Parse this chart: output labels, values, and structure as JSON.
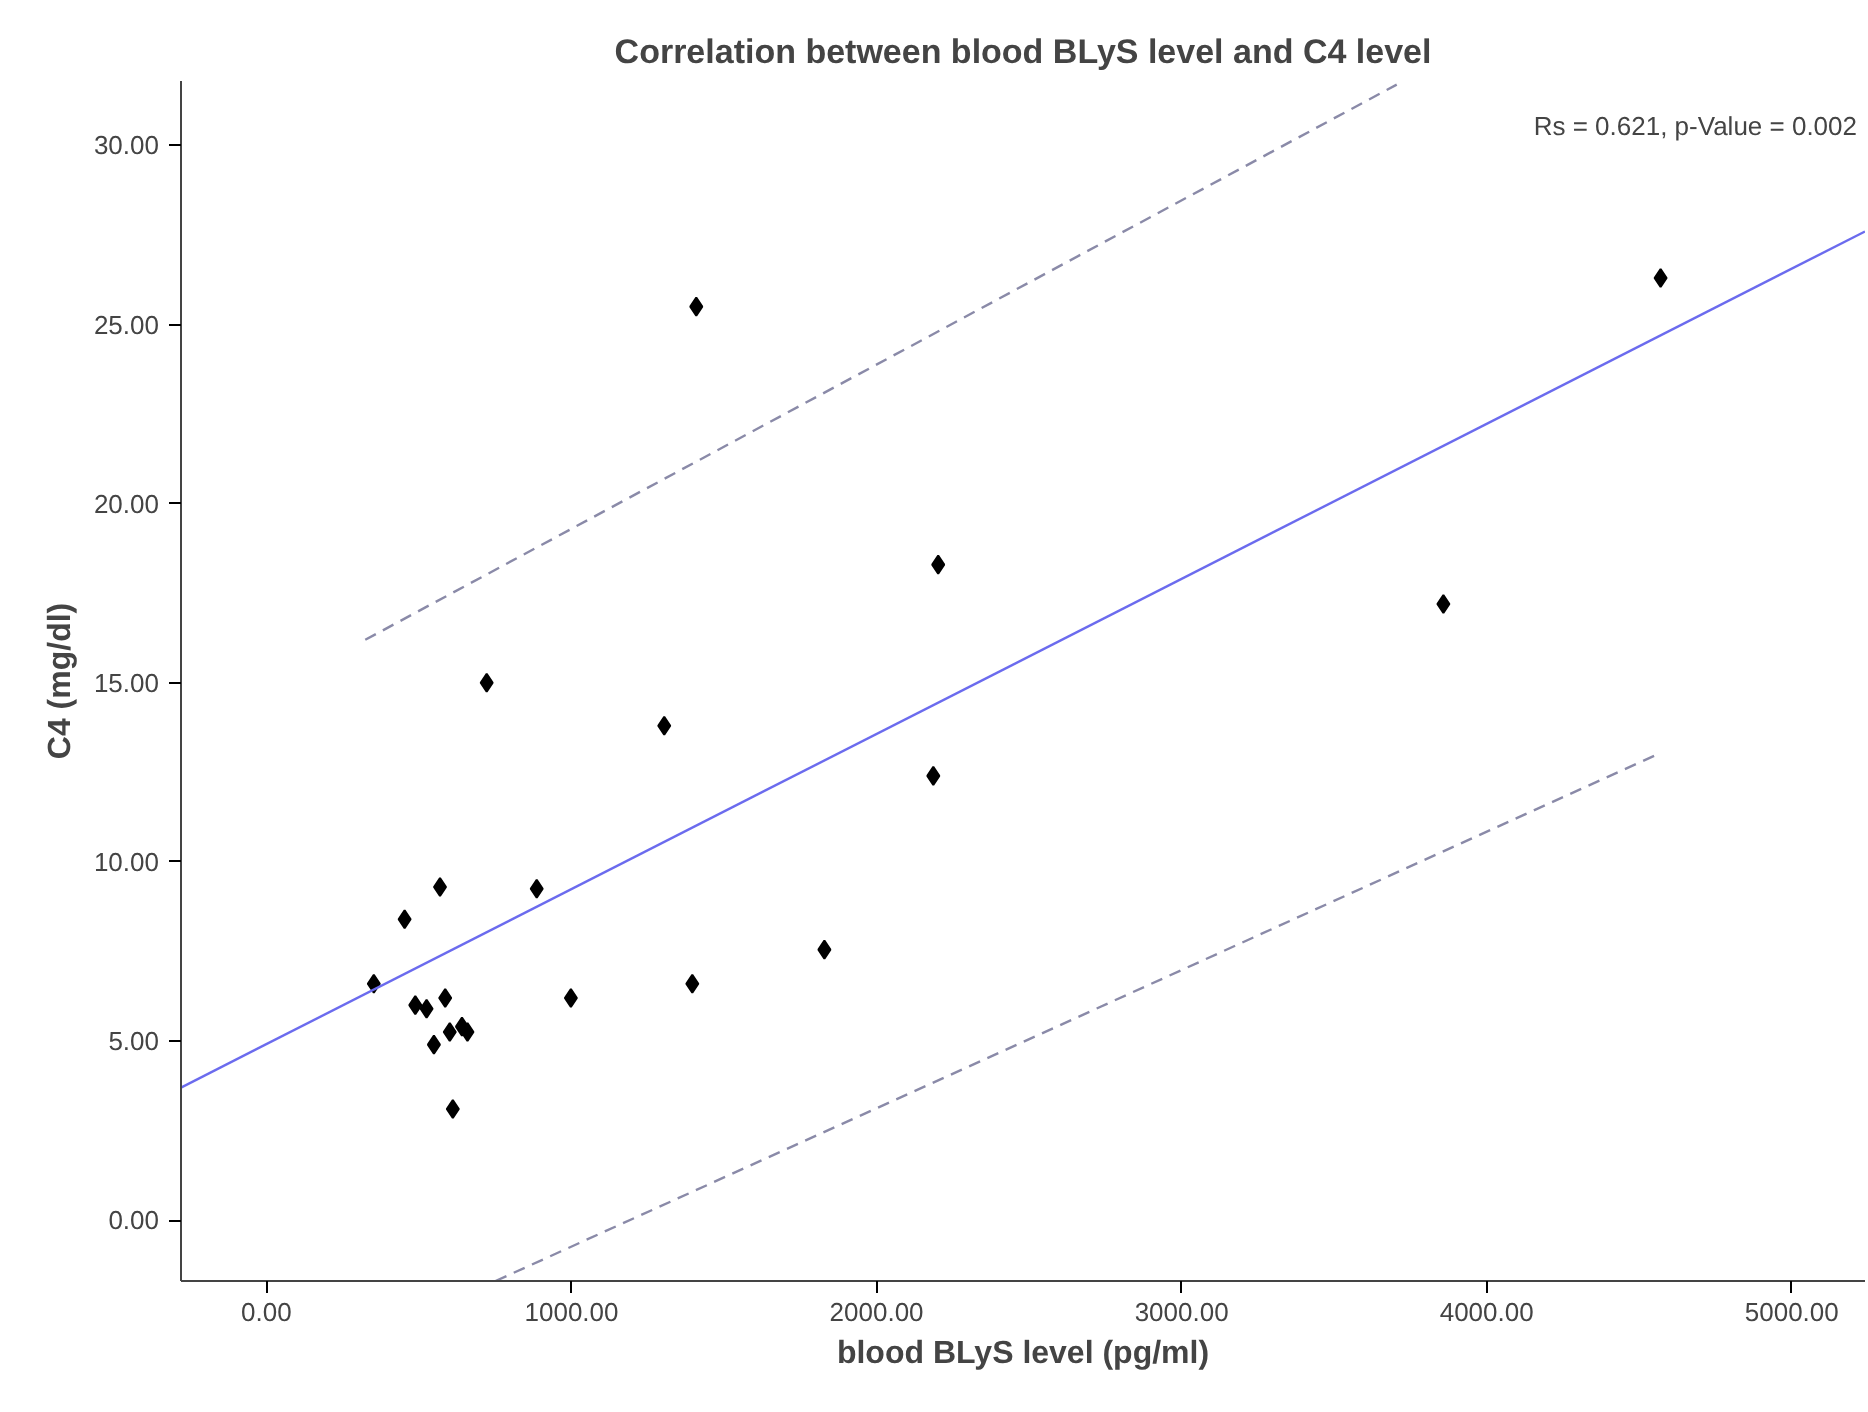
{
  "chart_data": {
    "type": "scatter",
    "title": "Correlation between blood BLyS level and C4 level",
    "xlabel": "blood BLyS level (pg/ml)",
    "ylabel": "C4 (mg/dl)",
    "annotations": [
      "Rs = 0.621, p-Value = 0.002"
    ],
    "xlim": [
      -280,
      5240
    ],
    "ylim": [
      -1.7,
      31.8
    ],
    "xticks": [
      {
        "value": 0,
        "label": "0.00"
      },
      {
        "value": 1000,
        "label": "1000.00"
      },
      {
        "value": 2000,
        "label": "2000.00"
      },
      {
        "value": 3000,
        "label": "3000.00"
      },
      {
        "value": 4000,
        "label": "4000.00"
      },
      {
        "value": 5000,
        "label": "5000.00"
      }
    ],
    "yticks": [
      {
        "value": 0,
        "label": "0.00"
      },
      {
        "value": 5,
        "label": "5.00"
      },
      {
        "value": 10,
        "label": "10.00"
      },
      {
        "value": 15,
        "label": "15.00"
      },
      {
        "value": 20,
        "label": "20.00"
      },
      {
        "value": 25,
        "label": "25.00"
      },
      {
        "value": 30,
        "label": "30.00"
      }
    ],
    "grid": false,
    "series": [
      {
        "marker": "diamond",
        "color": "#000000",
        "x": [
          722,
          1304,
          569,
          886,
          453,
          352,
          1829,
          1396,
          998,
          488,
          525,
          586,
          601,
          641,
          659,
          549,
          611,
          1409,
          2202,
          2186,
          4570,
          3858
        ],
        "values": [
          15.0,
          13.8,
          9.3,
          9.25,
          8.4,
          6.6,
          7.55,
          6.6,
          6.2,
          6.0,
          5.9,
          6.2,
          5.25,
          5.4,
          5.25,
          4.9,
          3.1,
          25.5,
          18.3,
          12.4,
          26.3,
          17.2
        ]
      },
      {
        "type": "line",
        "marker": "none",
        "color": "#6b6bee",
        "line_style": "solid",
        "x": [
          -280,
          5240
        ],
        "values": [
          3.7,
          27.6
        ]
      },
      {
        "type": "line",
        "marker": "none",
        "color": "#8a8aa8",
        "line_style": "dashed",
        "x": [
          324,
          3705
        ],
        "values": [
          16.2,
          31.7
        ]
      },
      {
        "type": "line",
        "marker": "none",
        "color": "#8a8aa8",
        "line_style": "dashed",
        "x": [
          751,
          4559
        ],
        "values": [
          -1.7,
          13.0
        ]
      }
    ]
  }
}
